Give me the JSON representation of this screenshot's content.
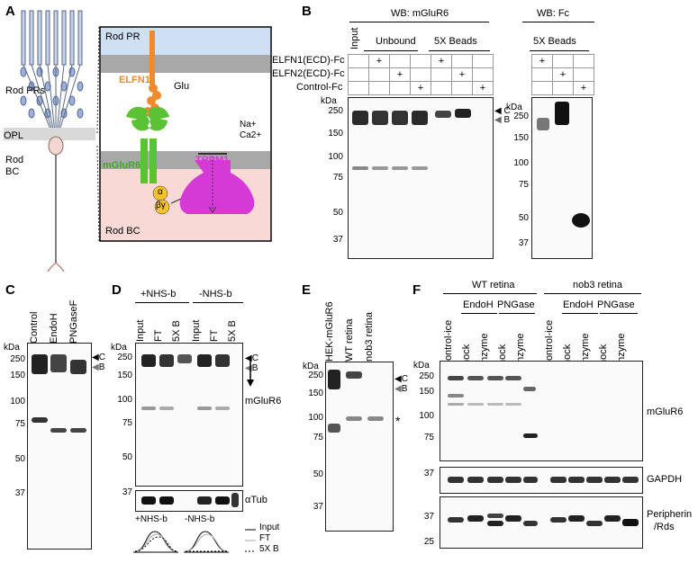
{
  "panels": {
    "A": {
      "letter": "A",
      "left_labels": {
        "rod_prs": "Rod PRs",
        "opl": "OPL",
        "rod_bc": "Rod BC"
      },
      "zoom": {
        "top": "Rod PR",
        "bottom": "Rod BC",
        "elfn1": "ELFN1",
        "glu": "Glu",
        "mglur6": "mGluR6",
        "trpm1": "TRPM1",
        "ions": "Na+ Ca2+",
        "alpha": "α",
        "betagamma": "βγ"
      },
      "colors": {
        "elfn1": "#f08a2a",
        "mglur6": "#5bc236",
        "trpm1": "#d63ad6",
        "galpha": "#f2c230",
        "rodpr_bg": "#cfe0f5",
        "rodbc_bg": "#f8d9d6",
        "membrane": "#a8a8a8"
      }
    },
    "B": {
      "letter": "B",
      "wb_mglur6": "WB: mGluR6",
      "wb_fc": "WB: Fc",
      "input": "Input",
      "unbound": "Unbound",
      "beads": "5X Beads",
      "beads_fc": "5X Beads",
      "rows": [
        "ELFN1(ECD)-Fc",
        "ELFN2(ECD)-Fc",
        "Control-Fc"
      ],
      "plus": "+",
      "kda": "kDa",
      "markers": [
        "250",
        "150",
        "100",
        "75",
        "50",
        "37"
      ],
      "markers_fc": [
        "250",
        "150",
        "100",
        "75",
        "50",
        "37"
      ],
      "c": "C",
      "b": "B"
    },
    "C": {
      "letter": "C",
      "lanes": [
        "Control",
        "EndoH",
        "PNGaseF"
      ],
      "kda": "kDa",
      "markers": [
        "250",
        "150",
        "100",
        "75",
        "50",
        "37"
      ],
      "c": "C",
      "b": "B"
    },
    "D": {
      "letter": "D",
      "groups": [
        "+NHS-b",
        "-NHS-b"
      ],
      "lanes": [
        "Input",
        "FT",
        "5X B",
        "Input",
        "FT",
        "5X B"
      ],
      "kda": "kDa",
      "markers": [
        "250",
        "150",
        "100",
        "75",
        "50",
        "37"
      ],
      "c": "C",
      "b": "B",
      "mglur6": "mGluR6",
      "atub": "αTub",
      "legend": [
        "Input",
        "FT",
        "5X B"
      ],
      "curve_labels": [
        "+NHS-b",
        "-NHS-b"
      ]
    },
    "E": {
      "letter": "E",
      "lanes": [
        "HEK-mGluR6",
        "WT retina",
        "nob3 retina"
      ],
      "kda": "kDa",
      "markers": [
        "250",
        "150",
        "100",
        "75",
        "50",
        "37"
      ],
      "c": "C",
      "b": "B",
      "star": "*"
    },
    "F": {
      "letter": "F",
      "groups": [
        "WT retina",
        "nob3 retina"
      ],
      "sub": [
        "EndoH",
        "PNGase",
        "EndoH",
        "PNGase"
      ],
      "lanes": [
        "Control-ice",
        "mock",
        "enzyme",
        "mock",
        "enzyme",
        "Control-ice",
        "mock",
        "enzyme",
        "mock",
        "enzyme"
      ],
      "kda": "kDa",
      "markers_main": [
        "250",
        "150",
        "100",
        "75"
      ],
      "marker_gapdh": "37",
      "markers_per": [
        "37",
        "25"
      ],
      "mglur6": "mGluR6",
      "gapdh": "GAPDH",
      "peripherin": "Peripherin",
      "rds": "/Rds"
    }
  }
}
